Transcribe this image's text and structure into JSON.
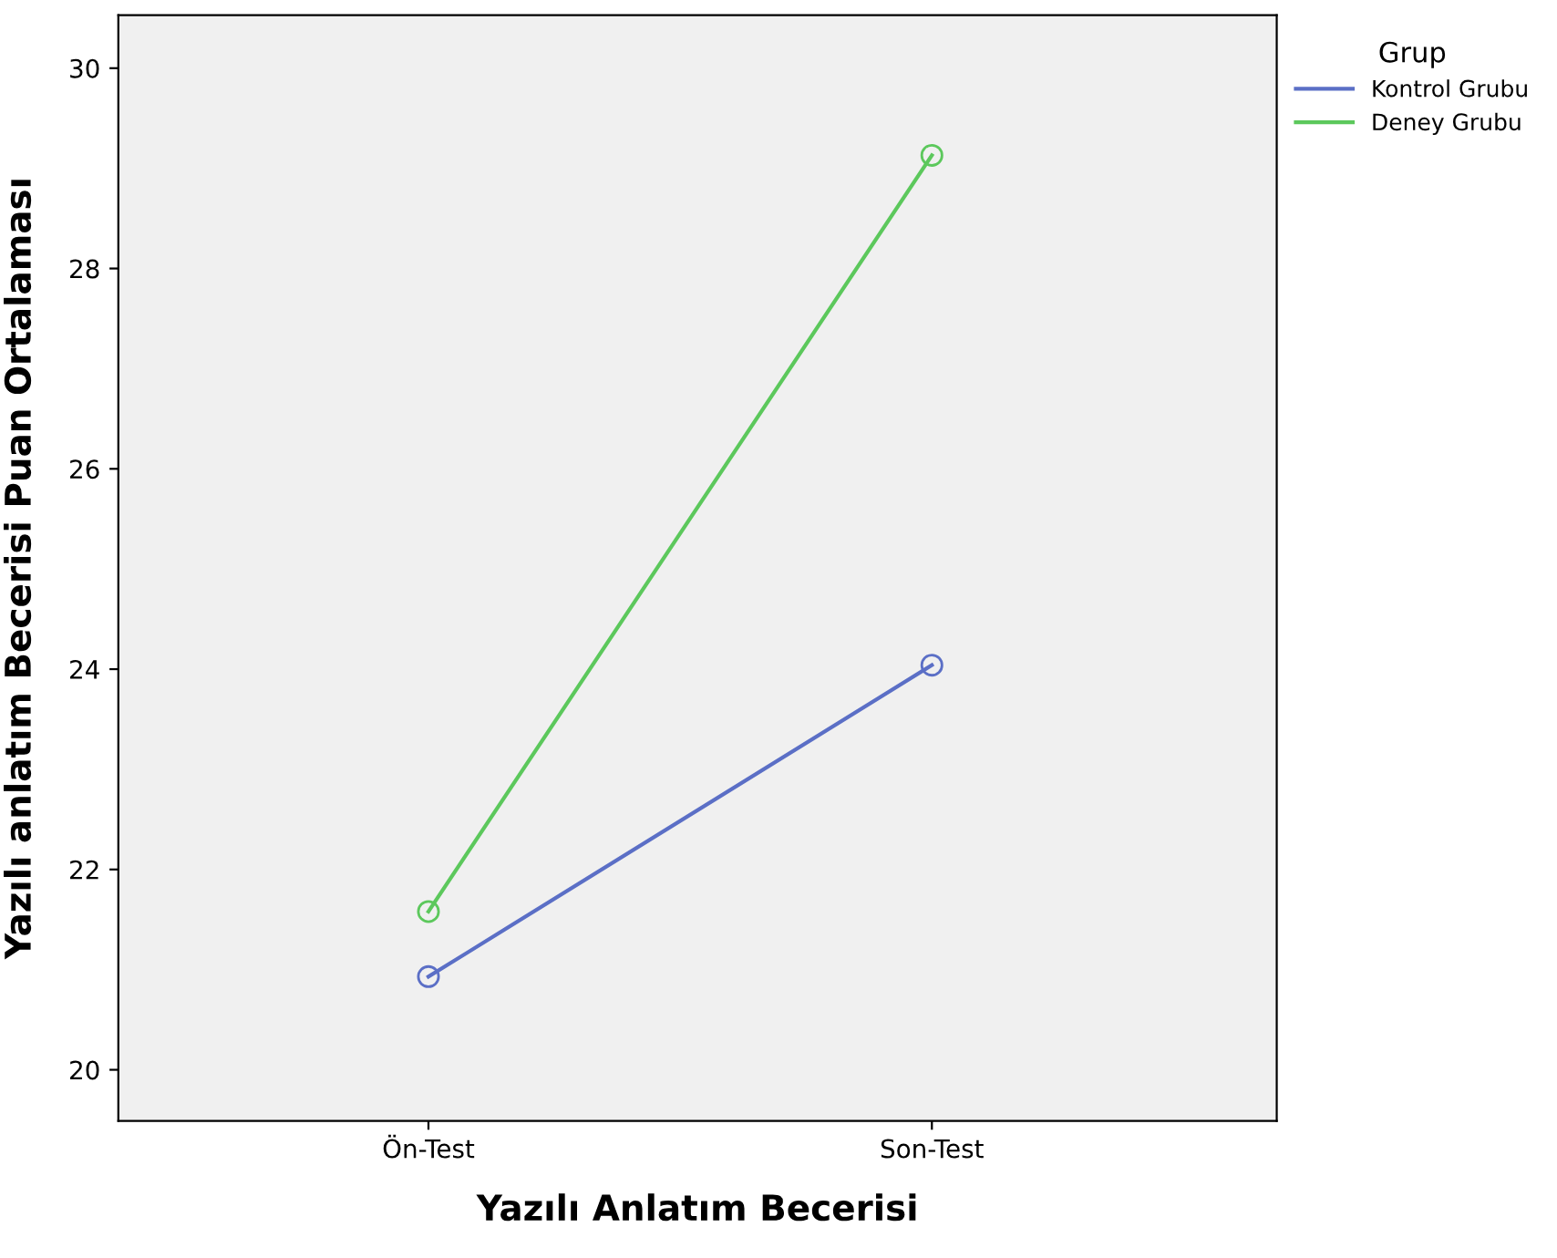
{
  "chart_data": {
    "type": "line",
    "xlabel": "Yazılı Anlatım Becerisi",
    "ylabel": "Yazılı anlatım Becerisi Puan Ortalaması",
    "legend_title": "Grup",
    "categories": [
      "Ön-Test",
      "Son-Test"
    ],
    "series": [
      {
        "name": "Kontrol Grubu",
        "color": "#5b6fc6",
        "values": [
          20.93,
          24.04
        ]
      },
      {
        "name": "Deney Grubu",
        "color": "#5cc85c",
        "values": [
          21.58,
          29.13
        ]
      }
    ],
    "ylim": [
      19.49,
      30.53
    ],
    "yticks": [
      20,
      22,
      24,
      26,
      28,
      30
    ],
    "marker": "circle",
    "legend": "top right",
    "grid": false
  }
}
